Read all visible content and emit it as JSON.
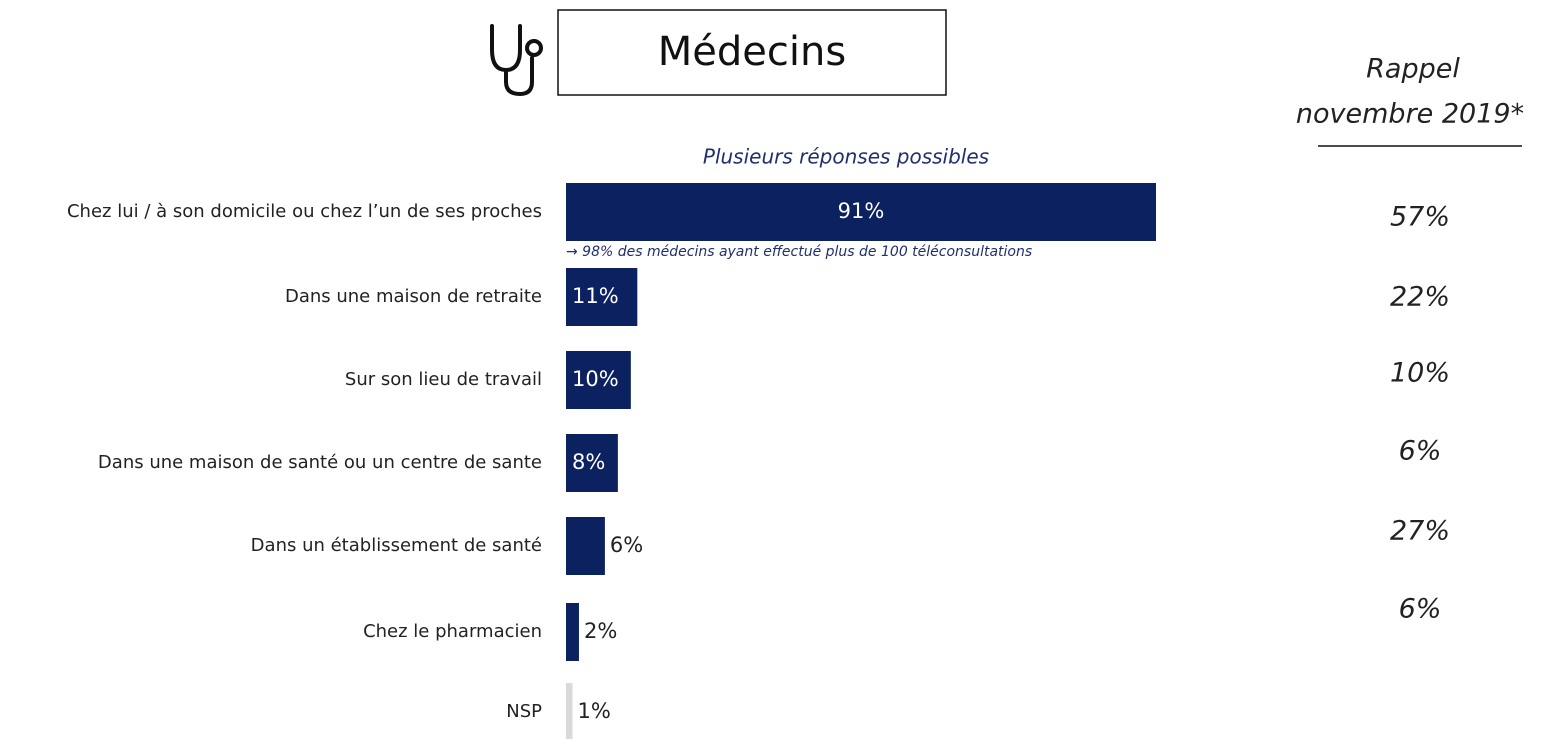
{
  "chart_data": {
    "type": "bar",
    "orientation": "horizontal",
    "title": "Médecins",
    "subtitle": "Plusieurs réponses possibles",
    "annotation": "→ 98% des médecins ayant effectué plus de 100 téléconsultations",
    "categories": [
      "Chez lui / à son domicile ou chez l’un de ses proches",
      "Dans une maison de retraite",
      "Sur son lieu de travail",
      "Dans une maison de santé ou un centre de sante",
      "Dans un établissement de santé",
      "Chez le pharmacien",
      "NSP"
    ],
    "values": [
      91,
      11,
      10,
      8,
      6,
      2,
      1
    ],
    "value_labels": [
      "91%",
      "11%",
      "10%",
      "8%",
      "6%",
      "2%",
      "1%"
    ],
    "colors": [
      "#0b2160",
      "#0b2160",
      "#0b2160",
      "#0b2160",
      "#0b2160",
      "#0b2160",
      "#d9d9d9"
    ],
    "recall": {
      "title": [
        "Rappel",
        "novembre 2019*"
      ],
      "values": [
        57,
        22,
        10,
        6,
        27,
        6,
        null
      ],
      "value_labels": [
        "57%",
        "22%",
        "10%",
        "6%",
        "27%",
        "6%",
        null
      ]
    }
  }
}
